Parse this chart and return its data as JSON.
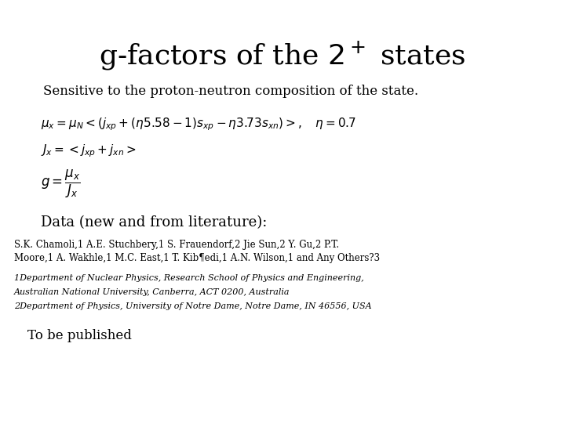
{
  "background_color": "#ffffff",
  "subtitle": "Sensitive to the proton-neutron composition of the state.",
  "data_label": "Data (new and from literature):",
  "authors": "S.K. Chamoli,1 A.E. Stuchbery,1 S. Frauendorf,2 Jie Sun,2 Y. Gu,2 P.T.\nMoore,1 A. Wakhle,1 M.C. East,1 T. Kib¶edi,1 A.N. Wilson,1 and Any Others?3",
  "affil1": "1Department of Nuclear Physics, Research School of Physics and Engineering,",
  "affil2": "Australian National University, Canberra, ACT 0200, Australia",
  "affil3": "2Department of Physics, University of Notre Dame, Notre Dame, IN 46556, USA",
  "published": "To be published",
  "title_fontsize": 26,
  "subtitle_fontsize": 12,
  "formula_fontsize": 11,
  "data_label_fontsize": 13,
  "authors_fontsize": 8.5,
  "affil_fontsize": 8,
  "published_fontsize": 12
}
